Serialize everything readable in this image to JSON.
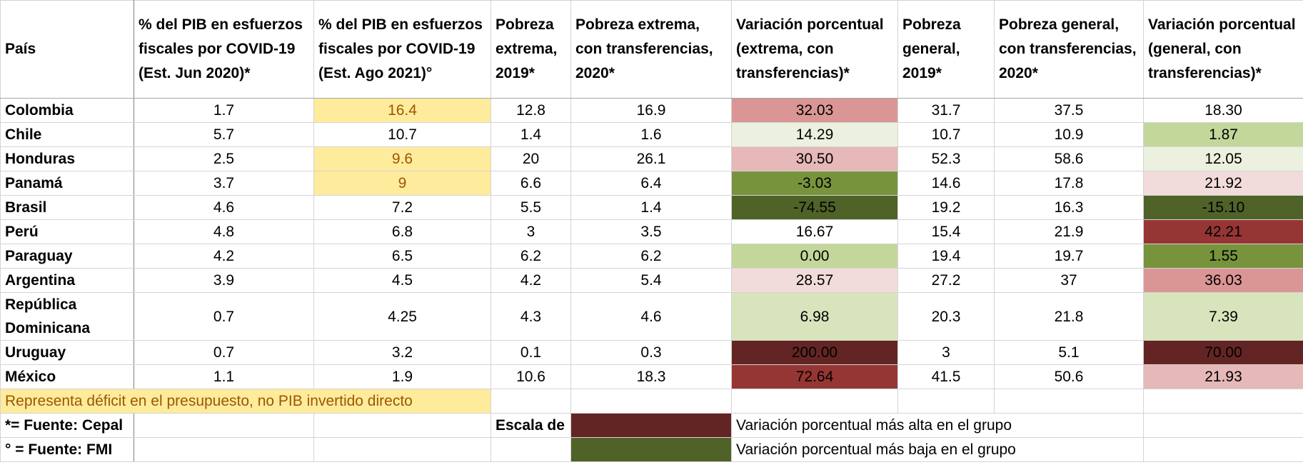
{
  "headers": [
    "País",
    "% del PIB en esfuerzos fiscales por COVID-19 (Est. Jun 2020)*",
    "% del PIB en esfuerzos fiscales por COVID-19 (Est. Ago 2021)°",
    "Pobreza extrema, 2019*",
    "Pobreza extrema, con transferencias, 2020*",
    "Variación porcentual (extrema, con transferencias)*",
    "Pobreza general, 2019*",
    "Pobreza general, con transferencias, 2020*",
    "Variación porcentual (general, con transferencias)*"
  ],
  "rows": [
    {
      "pais": "Colombia",
      "jun2020": "1.7",
      "ago2021": "16.4",
      "ago_highlight": true,
      "ext2019": "12.8",
      "ext2020": "16.9",
      "var_ext": "32.03",
      "var_ext_color": "#da9694",
      "gen2019": "31.7",
      "gen2020": "37.5",
      "var_gen": "18.30",
      "var_gen_color": "#ffffff",
      "var_ext_text": "#000000",
      "var_gen_text": "#000000"
    },
    {
      "pais": "Chile",
      "jun2020": "5.7",
      "ago2021": "10.7",
      "ago_highlight": false,
      "ext2019": "1.4",
      "ext2020": "1.6",
      "var_ext": "14.29",
      "var_ext_color": "#ebf1de",
      "gen2019": "10.7",
      "gen2020": "10.9",
      "var_gen": "1.87",
      "var_gen_color": "#c4d79b",
      "var_ext_text": "#000000",
      "var_gen_text": "#000000"
    },
    {
      "pais": "Honduras",
      "jun2020": "2.5",
      "ago2021": "9.6",
      "ago_highlight": true,
      "ext2019": "20",
      "ext2020": "26.1",
      "var_ext": "30.50",
      "var_ext_color": "#e6b8b7",
      "gen2019": "52.3",
      "gen2020": "58.6",
      "var_gen": "12.05",
      "var_gen_color": "#ebf1de",
      "var_ext_text": "#000000",
      "var_gen_text": "#000000"
    },
    {
      "pais": "Panamá",
      "jun2020": "3.7",
      "ago2021": "9",
      "ago_highlight": true,
      "ext2019": "6.6",
      "ext2020": "6.4",
      "var_ext": "-3.03",
      "var_ext_color": "#77933c",
      "gen2019": "14.6",
      "gen2020": "17.8",
      "var_gen": "21.92",
      "var_gen_color": "#f2dcdb",
      "var_ext_text": "#000000",
      "var_gen_text": "#000000"
    },
    {
      "pais": "Brasil",
      "jun2020": "4.6",
      "ago2021": "7.2",
      "ago_highlight": false,
      "ext2019": "5.5",
      "ext2020": "1.4",
      "var_ext": "-74.55",
      "var_ext_color": "#4f6228",
      "gen2019": "19.2",
      "gen2020": "16.3",
      "var_gen": "-15.10",
      "var_gen_color": "#4f6228",
      "var_ext_text": "#000000",
      "var_gen_text": "#000000"
    },
    {
      "pais": "Perú",
      "jun2020": "4.8",
      "ago2021": "6.8",
      "ago_highlight": false,
      "ext2019": "3",
      "ext2020": "3.5",
      "var_ext": "16.67",
      "var_ext_color": "#ffffff",
      "gen2019": "15.4",
      "gen2020": "21.9",
      "var_gen": "42.21",
      "var_gen_color": "#963634",
      "var_ext_text": "#000000",
      "var_gen_text": "#000000"
    },
    {
      "pais": "Paraguay",
      "jun2020": "4.2",
      "ago2021": "6.5",
      "ago_highlight": false,
      "ext2019": "6.2",
      "ext2020": "6.2",
      "var_ext": "0.00",
      "var_ext_color": "#c4d79b",
      "gen2019": "19.4",
      "gen2020": "19.7",
      "var_gen": "1.55",
      "var_gen_color": "#77933c",
      "var_ext_text": "#000000",
      "var_gen_text": "#000000"
    },
    {
      "pais": "Argentina",
      "jun2020": "3.9",
      "ago2021": "4.5",
      "ago_highlight": false,
      "ext2019": "4.2",
      "ext2020": "5.4",
      "var_ext": "28.57",
      "var_ext_color": "#f2dcdb",
      "gen2019": "27.2",
      "gen2020": "37",
      "var_gen": "36.03",
      "var_gen_color": "#da9694",
      "var_ext_text": "#000000",
      "var_gen_text": "#000000"
    },
    {
      "pais": "República Dominicana",
      "jun2020": "0.7",
      "ago2021": "4.25",
      "ago_highlight": false,
      "ext2019": "4.3",
      "ext2020": "4.6",
      "var_ext": "6.98",
      "var_ext_color": "#d8e4bc",
      "gen2019": "20.3",
      "gen2020": "21.8",
      "var_gen": "7.39",
      "var_gen_color": "#d8e4bc",
      "var_ext_text": "#000000",
      "var_gen_text": "#000000",
      "tall": true
    },
    {
      "pais": "Uruguay",
      "jun2020": "0.7",
      "ago2021": "3.2",
      "ago_highlight": false,
      "ext2019": "0.1",
      "ext2020": "0.3",
      "var_ext": "200.00",
      "var_ext_color": "#632523",
      "gen2019": "3",
      "gen2020": "5.1",
      "var_gen": "70.00",
      "var_gen_color": "#632523",
      "var_ext_text": "#000000",
      "var_gen_text": "#000000"
    },
    {
      "pais": "México",
      "jun2020": "1.1",
      "ago2021": "1.9",
      "ago_highlight": false,
      "ext2019": "10.6",
      "ext2020": "18.3",
      "var_ext": "72.64",
      "var_ext_color": "#963634",
      "gen2019": "41.5",
      "gen2020": "50.6",
      "var_gen": "21.93",
      "var_gen_color": "#e6b8b7",
      "var_ext_text": "#000000",
      "var_gen_text": "#000000"
    }
  ],
  "notes": {
    "deficit_note": "Representa déficit en el presupuesto, no PIB invertido directo",
    "cepal_source": "*= Fuente: Cepal",
    "fmi_source": "° = Fuente: FMI",
    "scale_label": "Escala de",
    "scale_high_color": "#632523",
    "scale_low_color": "#4f6228",
    "scale_high_text": "Variación porcentual más alta en el grupo",
    "scale_low_text": "Variación porcentual más baja en el grupo"
  }
}
